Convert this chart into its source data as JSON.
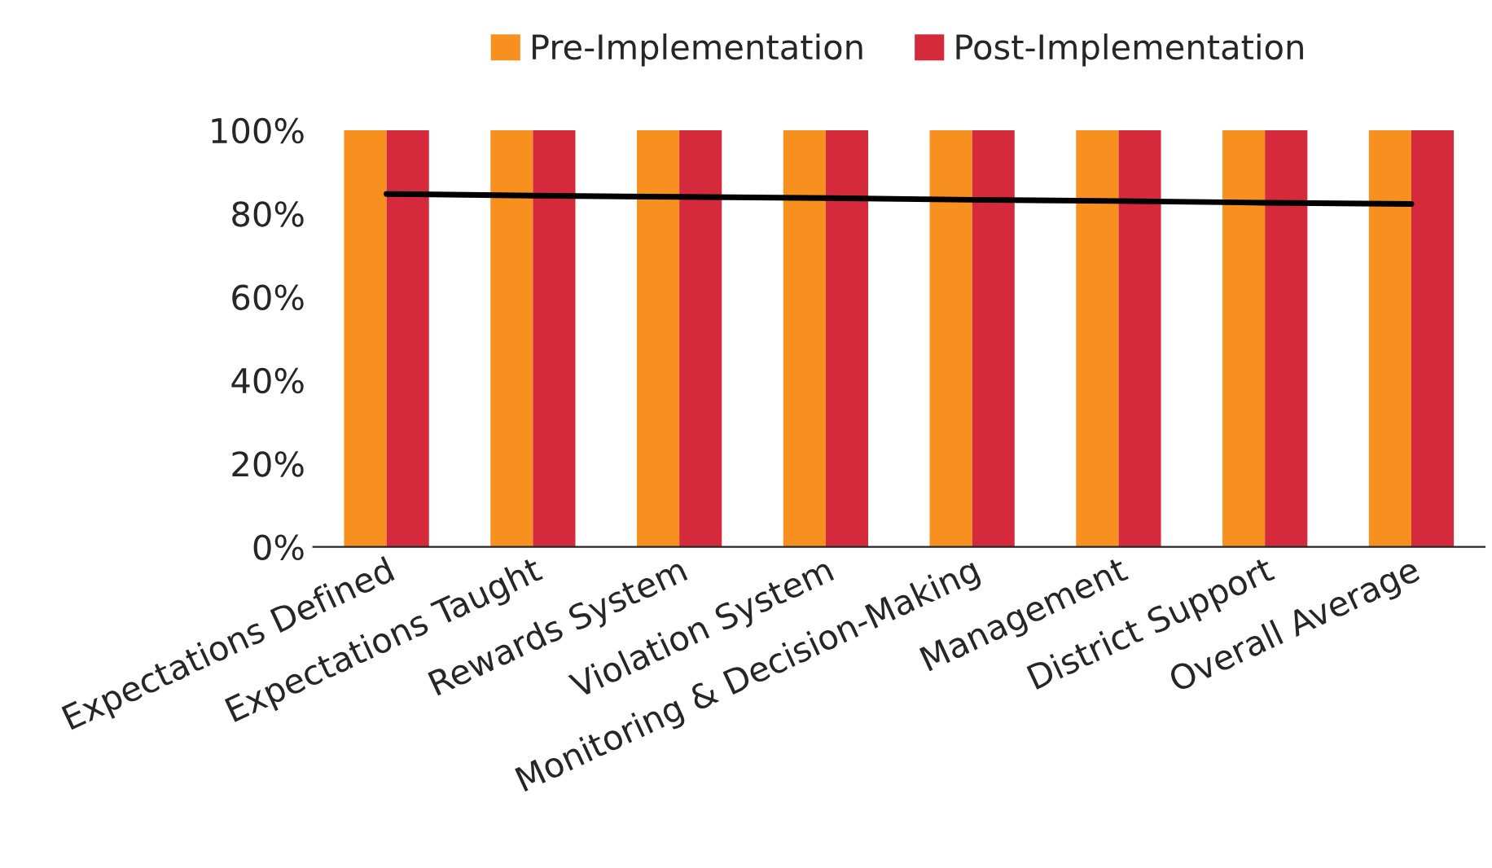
{
  "chart_data": {
    "type": "bar",
    "categories": [
      "Expectations Defined",
      "Expectations Taught",
      "Rewards System",
      "Violation System",
      "Monitoring & Decision-Making",
      "Management",
      "District Support",
      "Overall Average"
    ],
    "series": [
      {
        "name": "Pre-Implementation",
        "color": "#f7901e",
        "values": [
          100,
          100,
          100,
          100,
          100,
          100,
          100,
          100
        ]
      },
      {
        "name": "Post-Implementation",
        "color": "#d42a3c",
        "values": [
          100,
          100,
          100,
          100,
          100,
          100,
          100,
          100
        ]
      },
      {
        "type": "line",
        "color": "#000000",
        "values": [
          84.7,
          84.3,
          84.0,
          83.7,
          83.3,
          83.0,
          82.6,
          82.3
        ]
      }
    ],
    "ylim": [
      0,
      100
    ],
    "yticks": [
      {
        "value": 0,
        "label": "0%"
      },
      {
        "value": 20,
        "label": "20%"
      },
      {
        "value": 40,
        "label": "40%"
      },
      {
        "value": 60,
        "label": "60%"
      },
      {
        "value": 80,
        "label": "80%"
      },
      {
        "value": 100,
        "label": "100%"
      }
    ],
    "grid": false,
    "legend": "top",
    "marker": "none",
    "line_style": "solid"
  }
}
